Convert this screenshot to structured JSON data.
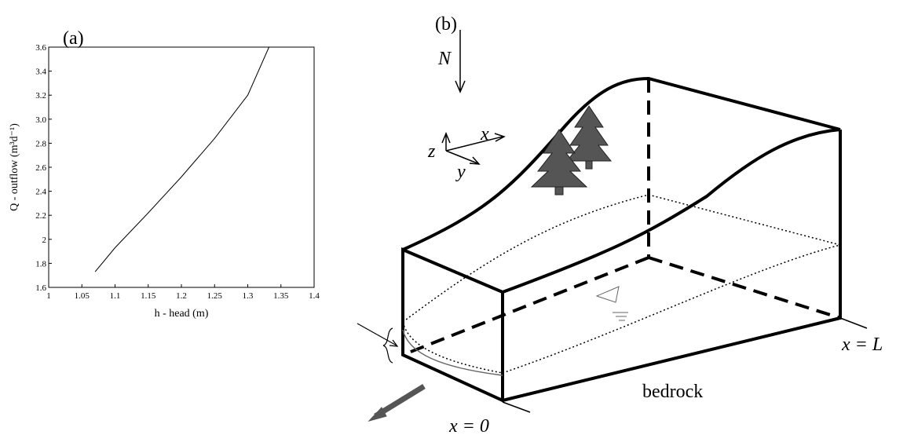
{
  "chart_data": {
    "type": "line",
    "panel_label": "(a)",
    "x_label": "h - head (m)",
    "y_label": "Q - outflow (m³d⁻¹)",
    "x": [
      1.07,
      1.1,
      1.15,
      1.2,
      1.25,
      1.3,
      1.332
    ],
    "series": [
      {
        "color": "#000000",
        "values": [
          1.73,
          1.93,
          2.22,
          2.52,
          2.84,
          3.2,
          3.6
        ]
      }
    ],
    "xlim": [
      1,
      1.4
    ],
    "xticks": [
      1,
      1.05,
      1.1,
      1.15,
      1.2,
      1.25,
      1.3,
      1.35,
      1.4
    ],
    "ylim": [
      1.6,
      3.6
    ],
    "yticks": [
      1.6,
      1.8,
      2,
      2.2,
      2.4,
      2.6,
      2.8,
      {
        "value": 3,
        "label": "3.0"
      },
      3.2,
      3.4,
      3.6
    ]
  },
  "diagram": {
    "panel_label": "(b)",
    "recharge": "N",
    "axis_z": "z",
    "axis_x": "x",
    "axis_y": "y",
    "end_label": "x = L",
    "bedrock": "bedrock",
    "start_label": "x = 0"
  }
}
